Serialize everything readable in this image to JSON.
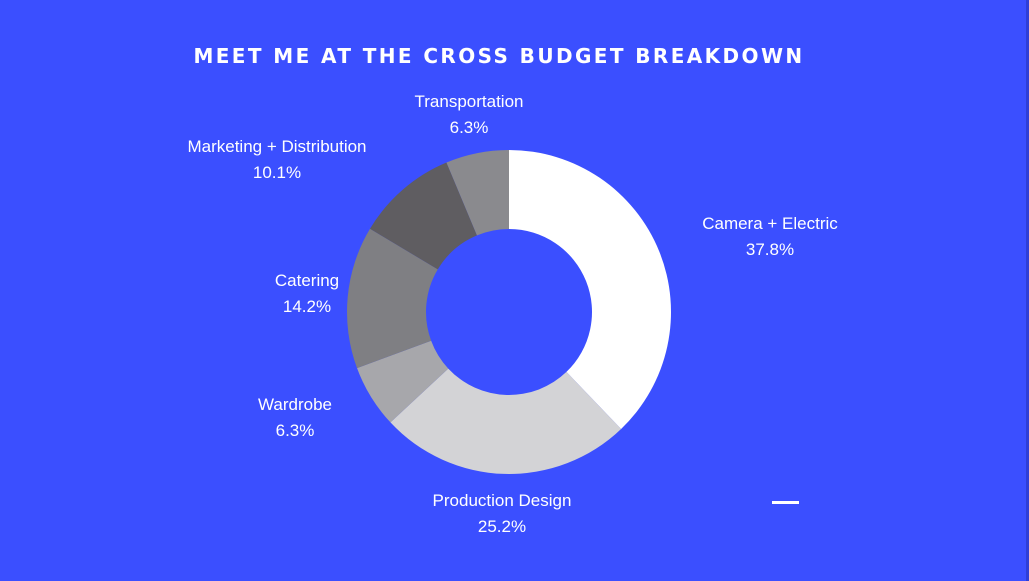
{
  "chart_data": {
    "type": "pie",
    "title": "MEET ME AT THE CROSS BUDGET BREAKDOWN",
    "slices": [
      {
        "label": "Camera + Electric",
        "percent_text": "37.8%",
        "value": 37.8,
        "color": "#ffffff"
      },
      {
        "label": "Production Design",
        "percent_text": "25.2%",
        "value": 25.2,
        "color": "#d3d3d6"
      },
      {
        "label": "Wardrobe",
        "percent_text": "6.3%",
        "value": 6.3,
        "color": "#a7a7ab"
      },
      {
        "label": "Catering",
        "percent_text": "14.2%",
        "value": 14.2,
        "color": "#7f7f83"
      },
      {
        "label": "Marketing + Distribution",
        "percent_text": "10.1%",
        "value": 10.1,
        "color": "#5f5d61"
      },
      {
        "label": "Transportation",
        "percent_text": "6.3%",
        "value": 6.3,
        "color": "#8a8a8e"
      }
    ],
    "hole": true,
    "start_angle": "top",
    "direction": "clockwise"
  },
  "colors": {
    "background": "#3b4fff",
    "text": "#ffffff"
  }
}
